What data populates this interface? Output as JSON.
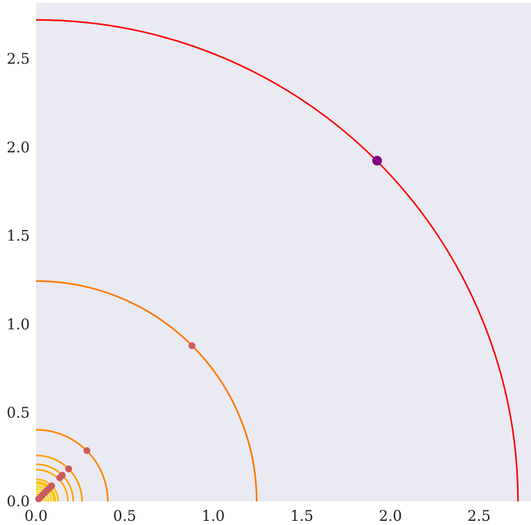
{
  "chart_data": {
    "type": "scatter",
    "title": "",
    "xlabel": "",
    "ylabel": "",
    "xlim": [
      0,
      2.82
    ],
    "ylim": [
      0,
      2.82
    ],
    "grid": false,
    "background": "#eaeaf2",
    "x_ticks": [
      "0.0",
      "0.5",
      "1.0",
      "1.5",
      "2.0",
      "2.5"
    ],
    "y_ticks": [
      "0.0",
      "0.5",
      "1.0",
      "1.5",
      "2.0",
      "2.5"
    ],
    "tick_values": [
      0,
      0.5,
      1.0,
      1.5,
      2.0,
      2.5
    ],
    "arcs": [
      {
        "radius": 2.72,
        "color": "#ff0000"
      },
      {
        "radius": 1.245,
        "color": "#ff7700"
      },
      {
        "radius": 0.405,
        "color": "#ff8800"
      },
      {
        "radius": 0.26,
        "color": "#ff9900"
      },
      {
        "radius": 0.21,
        "color": "#ffa200"
      },
      {
        "radius": 0.18,
        "color": "#ffaa00"
      },
      {
        "radius": 0.125,
        "color": "#ffb800"
      },
      {
        "radius": 0.11,
        "color": "#ffc000"
      },
      {
        "radius": 0.1,
        "color": "#ffc800"
      },
      {
        "radius": 0.085,
        "color": "#ffcf00"
      },
      {
        "radius": 0.07,
        "color": "#ffd500"
      },
      {
        "radius": 0.055,
        "color": "#ffda00"
      },
      {
        "radius": 0.04,
        "color": "#ffdd00"
      },
      {
        "radius": 0.025,
        "color": "#ffe000"
      }
    ],
    "points": [
      {
        "x": 1.925,
        "y": 1.925,
        "color": "#800080",
        "highlight": true
      },
      {
        "x": 0.88,
        "y": 0.88,
        "color": "#cd5c5c"
      },
      {
        "x": 0.287,
        "y": 0.287,
        "color": "#cd5c5c"
      },
      {
        "x": 0.184,
        "y": 0.184,
        "color": "#cd5c5c"
      },
      {
        "x": 0.148,
        "y": 0.148,
        "color": "#cd5c5c"
      },
      {
        "x": 0.134,
        "y": 0.134,
        "color": "#cd5c5c"
      },
      {
        "x": 0.088,
        "y": 0.088,
        "color": "#cd5c5c"
      },
      {
        "x": 0.078,
        "y": 0.078,
        "color": "#cd5c5c"
      },
      {
        "x": 0.064,
        "y": 0.064,
        "color": "#cd5c5c"
      },
      {
        "x": 0.05,
        "y": 0.05,
        "color": "#cd5c5c"
      },
      {
        "x": 0.036,
        "y": 0.036,
        "color": "#cd5c5c"
      },
      {
        "x": 0.025,
        "y": 0.025,
        "color": "#cd5c5c"
      },
      {
        "x": 0.015,
        "y": 0.015,
        "color": "#cd5c5c"
      }
    ]
  }
}
